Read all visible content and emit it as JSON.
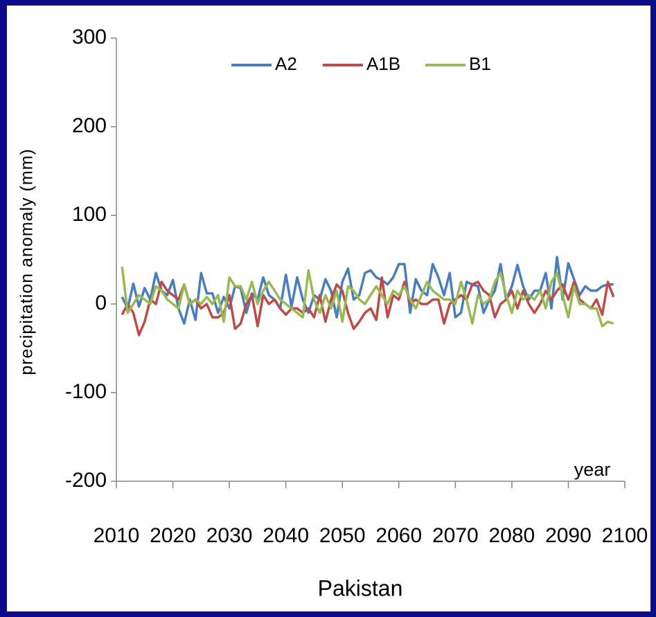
{
  "chart_data": {
    "type": "line",
    "x_label": "Pakistan",
    "y_label": "precipitation anomaly (mm)",
    "annotation": "year",
    "x": [
      2011,
      2012,
      2013,
      2014,
      2015,
      2016,
      2017,
      2018,
      2019,
      2020,
      2021,
      2022,
      2023,
      2024,
      2025,
      2026,
      2027,
      2028,
      2029,
      2030,
      2031,
      2032,
      2033,
      2034,
      2035,
      2036,
      2037,
      2038,
      2039,
      2040,
      2041,
      2042,
      2043,
      2044,
      2045,
      2046,
      2047,
      2048,
      2049,
      2050,
      2051,
      2052,
      2053,
      2054,
      2055,
      2056,
      2057,
      2058,
      2059,
      2060,
      2061,
      2062,
      2063,
      2064,
      2065,
      2066,
      2067,
      2068,
      2069,
      2070,
      2071,
      2072,
      2073,
      2074,
      2075,
      2076,
      2077,
      2078,
      2079,
      2080,
      2081,
      2082,
      2083,
      2084,
      2085,
      2086,
      2087,
      2088,
      2089,
      2090,
      2091,
      2092,
      2093,
      2094,
      2095,
      2096,
      2097,
      2098
    ],
    "series": [
      {
        "name": "A2",
        "color": "#4a7ebb",
        "values": [
          8,
          -5,
          23,
          -3,
          18,
          5,
          35,
          15,
          10,
          27,
          -5,
          -22,
          5,
          -18,
          35,
          12,
          12,
          -10,
          8,
          -5,
          20,
          18,
          -10,
          12,
          5,
          30,
          10,
          5,
          -5,
          33,
          -3,
          30,
          5,
          -10,
          10,
          5,
          28,
          15,
          -15,
          25,
          40,
          5,
          10,
          35,
          38,
          30,
          27,
          22,
          30,
          45,
          45,
          -10,
          28,
          15,
          10,
          45,
          30,
          10,
          35,
          -15,
          -10,
          25,
          22,
          20,
          -10,
          5,
          15,
          45,
          5,
          20,
          44,
          20,
          5,
          15,
          15,
          35,
          -5,
          53,
          5,
          46,
          28,
          10,
          20,
          15,
          15,
          20,
          22,
          22
        ]
      },
      {
        "name": "A1B",
        "color": "#be4b48",
        "values": [
          -12,
          0,
          -10,
          -35,
          -20,
          5,
          0,
          25,
          15,
          10,
          5,
          22,
          0,
          5,
          -5,
          0,
          -15,
          -15,
          -10,
          10,
          -28,
          -22,
          0,
          10,
          -25,
          10,
          0,
          5,
          -5,
          -12,
          -5,
          -5,
          -10,
          -5,
          -15,
          10,
          -20,
          5,
          22,
          15,
          -10,
          -28,
          -20,
          -10,
          -5,
          -18,
          30,
          -15,
          10,
          5,
          25,
          0,
          5,
          0,
          0,
          5,
          5,
          -22,
          0,
          5,
          10,
          5,
          22,
          25,
          15,
          10,
          -15,
          0,
          5,
          15,
          -5,
          15,
          0,
          -10,
          0,
          15,
          5,
          15,
          22,
          5,
          25,
          5,
          0,
          -5,
          5,
          -12,
          25,
          8
        ]
      },
      {
        "name": "B1",
        "color": "#98b954",
        "values": [
          42,
          -10,
          0,
          10,
          5,
          0,
          20,
          15,
          5,
          0,
          -5,
          22,
          0,
          5,
          0,
          8,
          0,
          10,
          -20,
          30,
          20,
          20,
          5,
          25,
          0,
          15,
          25,
          15,
          5,
          0,
          -5,
          -10,
          -15,
          38,
          5,
          -10,
          10,
          -5,
          15,
          -20,
          20,
          15,
          5,
          0,
          10,
          20,
          10,
          0,
          15,
          10,
          20,
          5,
          -5,
          10,
          25,
          15,
          10,
          5,
          5,
          0,
          25,
          5,
          -22,
          10,
          0,
          5,
          25,
          35,
          10,
          -10,
          15,
          5,
          10,
          5,
          15,
          -5,
          25,
          35,
          10,
          -15,
          20,
          0,
          0,
          -5,
          -5,
          -25,
          -20,
          -22
        ]
      }
    ],
    "xlim": [
      2010,
      2100
    ],
    "xticks": [
      2010,
      2020,
      2030,
      2040,
      2050,
      2060,
      2070,
      2080,
      2090,
      2100
    ],
    "ylim": [
      -200,
      300
    ],
    "yticks": [
      -200,
      -100,
      0,
      100,
      200,
      300
    ],
    "legend": "top"
  }
}
